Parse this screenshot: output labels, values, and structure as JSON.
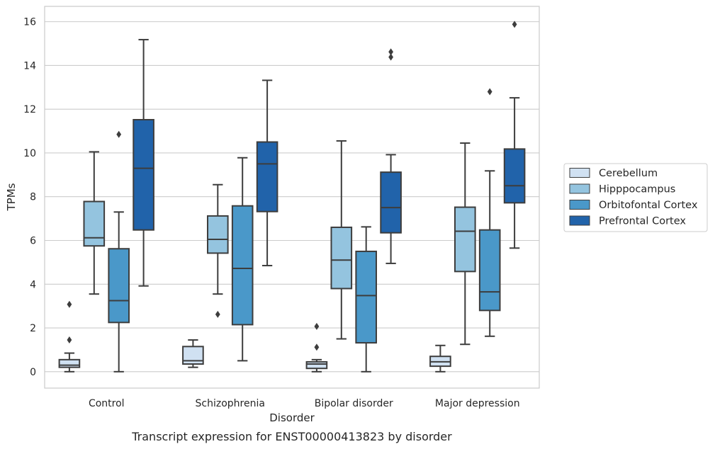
{
  "chart_data": {
    "type": "box",
    "title": "",
    "caption": "Transcript expression for ENST00000413823 by disorder",
    "xlabel": "Disorder",
    "ylabel": "TPMs",
    "ylim": [
      -0.75,
      16.7
    ],
    "yticks": [
      0,
      2,
      4,
      6,
      8,
      10,
      12,
      14,
      16
    ],
    "grid": true,
    "legend_position": "right",
    "categories": [
      "Control",
      "Schizophrenia",
      "Bipolar disorder",
      "Major depression"
    ],
    "series": [
      {
        "name": "Cerebellum",
        "color": "#d0e1f2",
        "boxes": [
          {
            "min": 0.0,
            "q1": 0.2,
            "median": 0.3,
            "q3": 0.55,
            "max": 0.85,
            "outliers": [
              1.45,
              3.08
            ]
          },
          {
            "min": 0.2,
            "q1": 0.35,
            "median": 0.5,
            "q3": 1.15,
            "max": 1.45,
            "outliers": []
          },
          {
            "min": 0.0,
            "q1": 0.15,
            "median": 0.35,
            "q3": 0.45,
            "max": 0.55,
            "outliers": [
              1.12,
              2.07
            ]
          },
          {
            "min": 0.0,
            "q1": 0.25,
            "median": 0.45,
            "q3": 0.7,
            "max": 1.2,
            "outliers": []
          }
        ]
      },
      {
        "name": "Hipppocampus",
        "color": "#94c4df",
        "boxes": [
          {
            "min": 3.55,
            "q1": 5.75,
            "median": 6.12,
            "q3": 7.78,
            "max": 10.05,
            "outliers": []
          },
          {
            "min": 3.55,
            "q1": 5.42,
            "median": 6.05,
            "q3": 7.12,
            "max": 8.55,
            "outliers": [
              2.62
            ]
          },
          {
            "min": 1.5,
            "q1": 3.8,
            "median": 5.1,
            "q3": 6.6,
            "max": 10.55,
            "outliers": []
          },
          {
            "min": 1.25,
            "q1": 4.58,
            "median": 6.42,
            "q3": 7.52,
            "max": 10.45,
            "outliers": []
          }
        ]
      },
      {
        "name": "Orbitofontal Cortex",
        "color": "#4a98c9",
        "boxes": [
          {
            "min": 0.0,
            "q1": 2.25,
            "median": 3.25,
            "q3": 5.62,
            "max": 7.3,
            "outliers": [
              10.85
            ]
          },
          {
            "min": 0.5,
            "q1": 2.15,
            "median": 4.72,
            "q3": 7.58,
            "max": 9.78,
            "outliers": []
          },
          {
            "min": 0.0,
            "q1": 1.32,
            "median": 3.48,
            "q3": 5.5,
            "max": 6.62,
            "outliers": []
          },
          {
            "min": 1.62,
            "q1": 2.8,
            "median": 3.65,
            "q3": 6.48,
            "max": 9.18,
            "outliers": [
              12.8
            ]
          }
        ]
      },
      {
        "name": "Prefrontal Cortex",
        "color": "#2163aa",
        "boxes": [
          {
            "min": 3.92,
            "q1": 6.48,
            "median": 9.3,
            "q3": 11.52,
            "max": 15.18,
            "outliers": []
          },
          {
            "min": 4.85,
            "q1": 7.32,
            "median": 9.5,
            "q3": 10.5,
            "max": 13.32,
            "outliers": []
          },
          {
            "min": 4.95,
            "q1": 6.35,
            "median": 7.5,
            "q3": 9.12,
            "max": 9.92,
            "outliers": [
              14.38,
              14.62
            ]
          },
          {
            "min": 5.65,
            "q1": 7.72,
            "median": 8.5,
            "q3": 10.18,
            "max": 12.52,
            "outliers": [
              15.88
            ]
          }
        ]
      }
    ]
  }
}
